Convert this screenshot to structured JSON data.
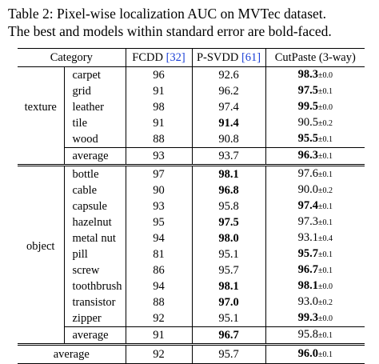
{
  "caption": {
    "lines": [
      "Table 2:  Pixel-wise localization AUC on MVTec dataset.",
      "The best and models within standard error are bold-faced."
    ]
  },
  "table": {
    "header": {
      "category": "Category",
      "methods": [
        {
          "name": "FCDD",
          "ref": "[32]"
        },
        {
          "name": "P-SVDD",
          "ref": "[61]"
        },
        {
          "name": "CutPaste (3-way)",
          "ref": null
        }
      ]
    },
    "groups": [
      {
        "name": "texture",
        "rows": [
          {
            "name": "carpet",
            "fcdd": "96",
            "psvdd": "92.6",
            "cutpaste": "98.3",
            "std": "±0.0",
            "bold": [
              false,
              false,
              true
            ]
          },
          {
            "name": "grid",
            "fcdd": "91",
            "psvdd": "96.2",
            "cutpaste": "97.5",
            "std": "±0.1",
            "bold": [
              false,
              false,
              true
            ]
          },
          {
            "name": "leather",
            "fcdd": "98",
            "psvdd": "97.4",
            "cutpaste": "99.5",
            "std": "±0.0",
            "bold": [
              false,
              false,
              true
            ]
          },
          {
            "name": "tile",
            "fcdd": "91",
            "psvdd": "91.4",
            "cutpaste": "90.5",
            "std": "±0.2",
            "bold": [
              false,
              true,
              false
            ]
          },
          {
            "name": "wood",
            "fcdd": "88",
            "psvdd": "90.8",
            "cutpaste": "95.5",
            "std": "±0.1",
            "bold": [
              false,
              false,
              true
            ]
          }
        ],
        "average": {
          "name": "average",
          "fcdd": "93",
          "psvdd": "93.7",
          "cutpaste": "96.3",
          "std": "±0.1",
          "bold": [
            false,
            false,
            true
          ]
        }
      },
      {
        "name": "object",
        "rows": [
          {
            "name": "bottle",
            "fcdd": "97",
            "psvdd": "98.1",
            "cutpaste": "97.6",
            "std": "±0.1",
            "bold": [
              false,
              true,
              false
            ]
          },
          {
            "name": "cable",
            "fcdd": "90",
            "psvdd": "96.8",
            "cutpaste": "90.0",
            "std": "±0.2",
            "bold": [
              false,
              true,
              false
            ]
          },
          {
            "name": "capsule",
            "fcdd": "93",
            "psvdd": "95.8",
            "cutpaste": "97.4",
            "std": "±0.1",
            "bold": [
              false,
              false,
              true
            ]
          },
          {
            "name": "hazelnut",
            "fcdd": "95",
            "psvdd": "97.5",
            "cutpaste": "97.3",
            "std": "±0.1",
            "bold": [
              false,
              true,
              false
            ]
          },
          {
            "name": "metal nut",
            "fcdd": "94",
            "psvdd": "98.0",
            "cutpaste": "93.1",
            "std": "±0.4",
            "bold": [
              false,
              true,
              false
            ]
          },
          {
            "name": "pill",
            "fcdd": "81",
            "psvdd": "95.1",
            "cutpaste": "95.7",
            "std": "±0.1",
            "bold": [
              false,
              false,
              true
            ]
          },
          {
            "name": "screw",
            "fcdd": "86",
            "psvdd": "95.7",
            "cutpaste": "96.7",
            "std": "±0.1",
            "bold": [
              false,
              false,
              true
            ]
          },
          {
            "name": "toothbrush",
            "fcdd": "94",
            "psvdd": "98.1",
            "cutpaste": "98.1",
            "std": "±0.0",
            "bold": [
              false,
              true,
              true
            ]
          },
          {
            "name": "transistor",
            "fcdd": "88",
            "psvdd": "97.0",
            "cutpaste": "93.0",
            "std": "±0.2",
            "bold": [
              false,
              true,
              false
            ]
          },
          {
            "name": "zipper",
            "fcdd": "92",
            "psvdd": "95.1",
            "cutpaste": "99.3",
            "std": "±0.0",
            "bold": [
              false,
              false,
              true
            ]
          }
        ],
        "average": {
          "name": "average",
          "fcdd": "91",
          "psvdd": "96.7",
          "cutpaste": "95.8",
          "std": "±0.1",
          "bold": [
            false,
            true,
            false
          ]
        }
      }
    ],
    "overall": {
      "name": "average",
      "fcdd": "92",
      "psvdd": "95.7",
      "cutpaste": "96.0",
      "std": "±0.1",
      "bold": [
        false,
        false,
        true
      ]
    }
  }
}
